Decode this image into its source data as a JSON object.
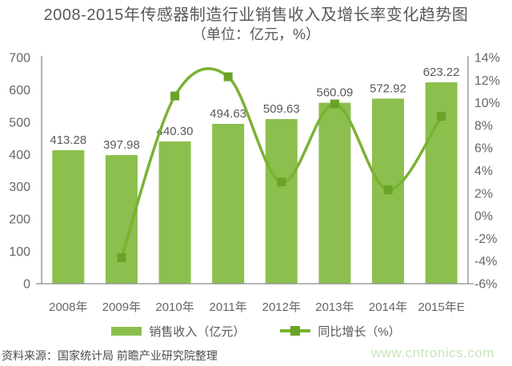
{
  "title": "2008-2015年传感器制造行业销售收入及增长率变化趋势图",
  "subtitle": "（单位：亿元，%）",
  "chart_data": {
    "type": "bar",
    "subtype": "bar-line-combo",
    "categories": [
      "2008年",
      "2009年",
      "2010年",
      "2011年",
      "2012年",
      "2013年",
      "2014年",
      "2015年E"
    ],
    "series": [
      {
        "name": "销售收入（亿元）",
        "type": "bar",
        "axis": "left",
        "values": [
          413.28,
          397.98,
          440.3,
          494.63,
          509.63,
          560.09,
          572.92,
          623.22
        ],
        "labels": [
          "413.28",
          "397.98",
          "440.30",
          "494.63",
          "509.63",
          "560.09",
          "572.92",
          "623.22"
        ]
      },
      {
        "name": "同比增长（%）",
        "type": "line",
        "axis": "right",
        "values": [
          null,
          -3.7,
          10.6,
          12.3,
          3.0,
          9.9,
          2.3,
          8.8
        ]
      }
    ],
    "left_axis": {
      "min": 0,
      "max": 700,
      "step": 100,
      "tick_labels": [
        "0",
        "100",
        "200",
        "300",
        "400",
        "500",
        "600",
        "700"
      ]
    },
    "right_axis": {
      "min": -6,
      "max": 14,
      "step": 2,
      "tick_labels": [
        "-6%",
        "-4%",
        "-2%",
        "0%",
        "2%",
        "4%",
        "6%",
        "8%",
        "10%",
        "12%",
        "14%"
      ]
    },
    "grid": false,
    "legend_position": "bottom",
    "title": "2008-2015年传感器制造行业销售收入及增长率变化趋势图",
    "xlabel": "",
    "ylabel_left": "亿元",
    "ylabel_right": "%"
  },
  "legend": {
    "items": [
      {
        "label": "销售收入（亿元）",
        "type": "bar"
      },
      {
        "label": "同比增长（%）",
        "type": "line"
      }
    ]
  },
  "footer": {
    "source": "资料来源：国家统计局 前瞻产业研究院整理",
    "watermark": "www.cntronics.com"
  },
  "colors": {
    "bar": "#8CBF4D",
    "line": "#7AB233",
    "marker": "#69A426",
    "title_text": "#595959",
    "axis_text": "#666666",
    "axis_line": "#8C8C8C",
    "value_label": "#595959",
    "source_text": "#4A4A4A",
    "watermark": "#C7E5BA"
  }
}
